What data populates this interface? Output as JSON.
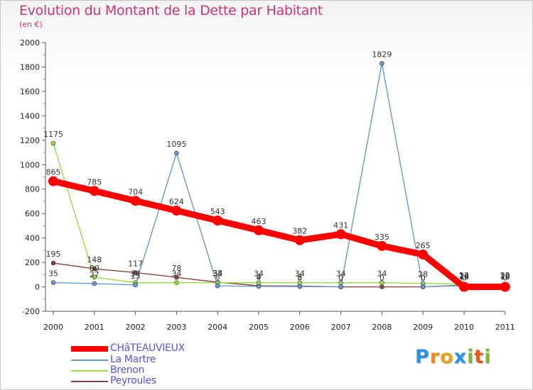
{
  "chart_data": {
    "type": "line",
    "title": "Evolution du Montant de la Dette par Habitant",
    "subtitle": "(en €)",
    "xlabel": "",
    "ylabel": "",
    "ylim": [
      -200,
      2000
    ],
    "ytick_step": 200,
    "grid": false,
    "categories": [
      "2000",
      "2001",
      "2002",
      "2003",
      "2004",
      "2005",
      "2006",
      "2007",
      "2008",
      "2009",
      "2010",
      "2011"
    ],
    "series": [
      {
        "name": "CHâTEAUVIEUX",
        "color": "#ff0000",
        "values": [
          865,
          785,
          704,
          624,
          543,
          463,
          382,
          431,
          335,
          265,
          0,
          0
        ],
        "labels": [
          "865",
          "785",
          "704",
          "624",
          "543",
          "463",
          "382",
          "431",
          "335",
          "265",
          "0",
          "0"
        ]
      },
      {
        "name": "La Martre",
        "color": "#6699cc",
        "values": [
          35,
          27,
          15,
          1095,
          8,
          4,
          3,
          0,
          1829,
          0,
          10,
          10
        ],
        "labels": [
          "35",
          "27",
          "15",
          "1095",
          "8",
          "4",
          "3",
          "0",
          "1829",
          "0",
          "10",
          "10"
        ]
      },
      {
        "name": "Brenon",
        "color": "#99dd44",
        "values": [
          1175,
          80,
          34,
          34,
          34,
          34,
          34,
          34,
          34,
          28,
          22,
          22
        ],
        "labels": [
          "1175",
          "80",
          "34",
          "34",
          "34",
          "34",
          "34",
          "34",
          "34",
          "28",
          "22",
          "22"
        ]
      },
      {
        "name": "Peyroules",
        "color": "#884444",
        "values": [
          195,
          148,
          117,
          78,
          38,
          9,
          6,
          0,
          0,
          0,
          14,
          13
        ],
        "labels": [
          "195",
          "148",
          "117",
          "78",
          "38",
          "9",
          "6",
          "0",
          "0",
          "0",
          "14",
          "13"
        ]
      }
    ],
    "legend_position": "bottom-left"
  },
  "logo": {
    "letters": [
      "P",
      "r",
      "o",
      "x",
      "i",
      "t",
      "i"
    ]
  }
}
